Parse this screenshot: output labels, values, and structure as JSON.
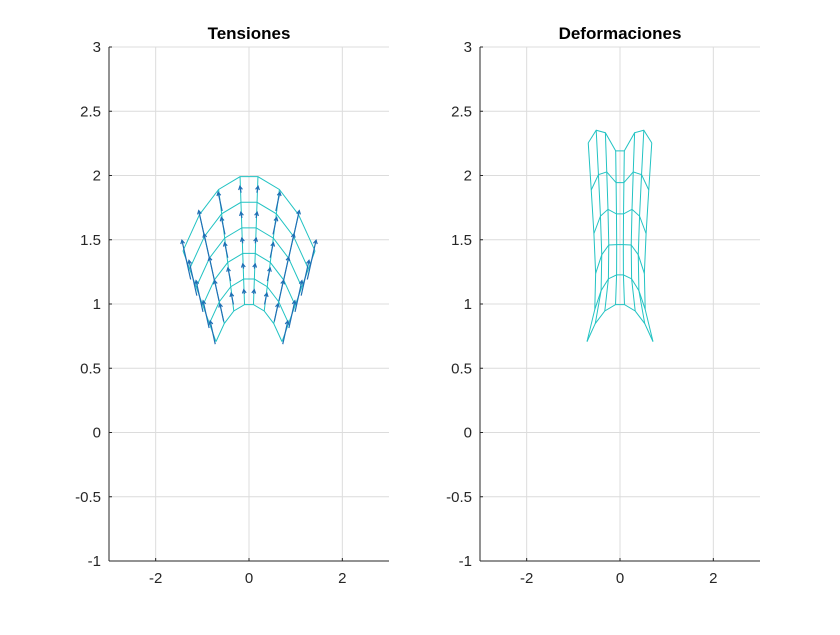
{
  "chart_data": [
    {
      "type": "mesh-quiver",
      "title": "Tensiones",
      "xlim": [
        -3,
        3
      ],
      "ylim": [
        -1,
        3
      ],
      "xticks": [
        -2,
        0,
        2
      ],
      "yticks": [
        3,
        2.5,
        2,
        1.5,
        1,
        0.5,
        0,
        -0.5,
        -1
      ],
      "xtick_labels": [
        "-2",
        "0",
        "2"
      ],
      "ytick_labels": [
        "3",
        "2.5",
        "2",
        "1.5",
        "1",
        "0.5",
        "0",
        "-0.5",
        "-1"
      ],
      "grid": true,
      "mesh_radii": [
        1.0,
        1.2,
        1.4,
        1.6,
        1.8,
        2.0
      ],
      "mesh_angles_deg": [
        135,
        122,
        109,
        95.5,
        84.5,
        71,
        58,
        45
      ],
      "mesh_color": "#22c3c3",
      "arrow_color": "#1f6fb5"
    },
    {
      "type": "mesh",
      "title": "Deformaciones",
      "xlim": [
        -3,
        3
      ],
      "ylim": [
        -1,
        3
      ],
      "xticks": [
        -2,
        0,
        2
      ],
      "yticks": [
        3,
        2.5,
        2,
        1.5,
        1,
        0.5,
        0,
        -0.5,
        -1
      ],
      "xtick_labels": [
        "-2",
        "0",
        "2"
      ],
      "ytick_labels": [
        "3",
        "2.5",
        "2",
        "1.5",
        "1",
        "0.5",
        "0",
        "-0.5",
        "-1"
      ],
      "grid": true,
      "mesh_radii": [
        1.0,
        1.2,
        1.4,
        1.6,
        1.8,
        2.0
      ],
      "mesh_angles_deg": [
        135,
        122,
        109,
        95.5,
        84.5,
        71,
        58,
        45
      ],
      "mesh_color": "#22c3c3"
    }
  ]
}
